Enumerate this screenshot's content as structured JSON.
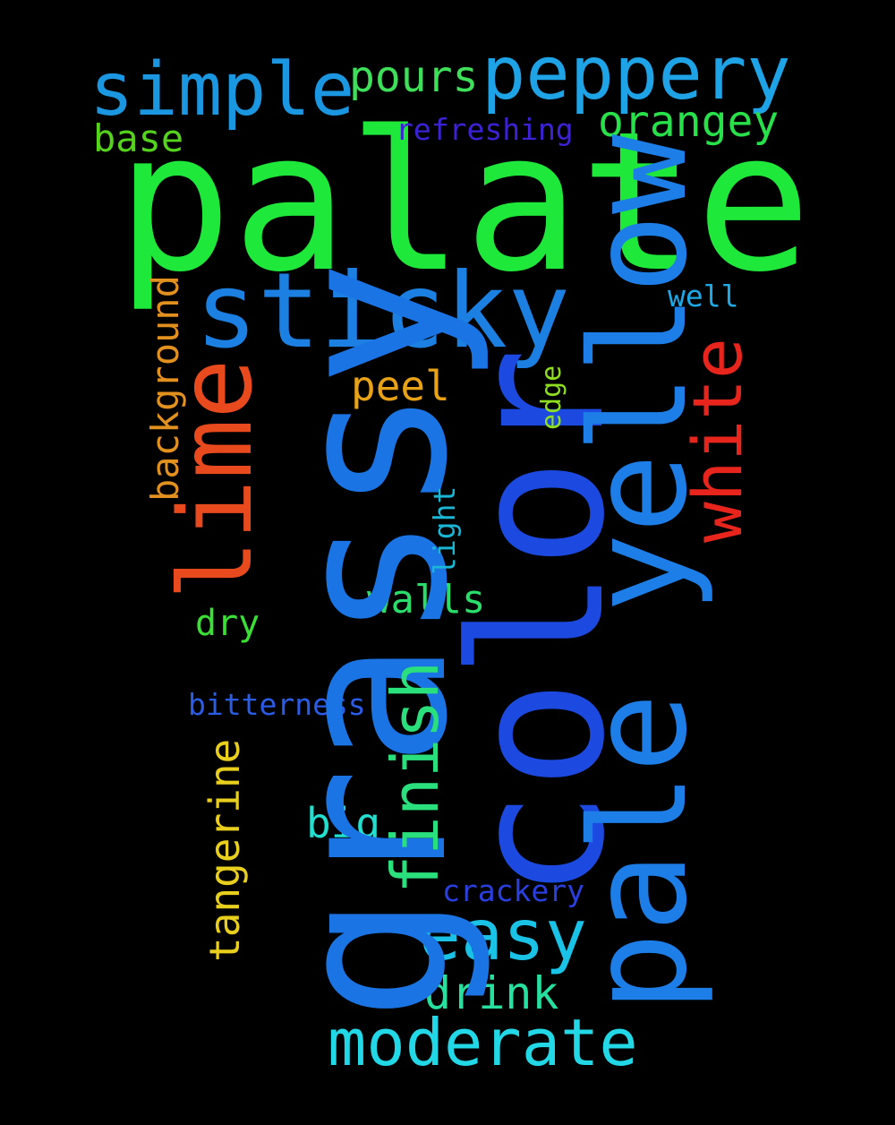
{
  "words": {
    "palate": "palate",
    "grassy": "grassy",
    "color": "color",
    "pale_yellow": "pale yellow",
    "sticky": "sticky",
    "lime": "lime",
    "peppery": "peppery",
    "simple": "simple",
    "white": "white",
    "moderate": "moderate",
    "easy": "easy",
    "finish": "finish",
    "drink": "drink",
    "pours": "pours",
    "orangey": "orangey",
    "peel": "peel",
    "walls": "walls",
    "tangerine": "tangerine",
    "base": "base",
    "big": "big",
    "dry": "dry",
    "background": "background",
    "refreshing": "refreshing",
    "bitterness": "bitterness",
    "crackery": "crackery",
    "well": "well",
    "light": "light",
    "edge": "edge"
  },
  "colors": {
    "background": "#000000",
    "green": "#1ee83a",
    "blue": "#1a74e4",
    "red": "#e84a1e",
    "cyan": "#22d8e6",
    "orange": "#e2901e",
    "yellow": "#e8cf1e"
  }
}
